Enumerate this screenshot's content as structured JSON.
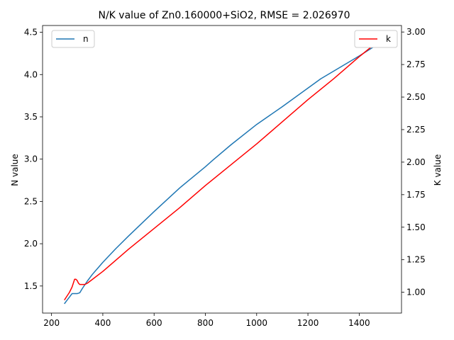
{
  "chart_data": {
    "type": "line",
    "title": "N/K value of Zn0.160000+SiO2, RMSE = 2.026970",
    "xlabel": "",
    "ylabel_left": "N value",
    "ylabel_right": "K value",
    "xlim": [
      165,
      1565
    ],
    "ylim_left": [
      1.18,
      4.58
    ],
    "ylim_right": [
      0.84,
      3.05
    ],
    "x_ticks": [
      200,
      400,
      600,
      800,
      1000,
      1200,
      1400
    ],
    "x_tick_labels": [
      "200",
      "400",
      "600",
      "800",
      "1000",
      "1200",
      "1400"
    ],
    "y_left_ticks": [
      1.5,
      2.0,
      2.5,
      3.0,
      3.5,
      4.0,
      4.5
    ],
    "y_left_tick_labels": [
      "1.5",
      "2.0",
      "2.5",
      "3.0",
      "3.5",
      "4.0",
      "4.5"
    ],
    "y_right_ticks": [
      1.0,
      1.25,
      1.5,
      1.75,
      2.0,
      2.25,
      2.5,
      2.75,
      3.0
    ],
    "y_right_tick_labels": [
      "1.00",
      "1.25",
      "1.50",
      "1.75",
      "2.00",
      "2.25",
      "2.50",
      "2.75",
      "3.00"
    ],
    "grid": false,
    "series": [
      {
        "name": "n",
        "axis": "left",
        "color": "#1f77b4",
        "legend_position": "upper-left",
        "x": [
          250,
          260,
          270,
          280,
          290,
          300,
          310,
          320,
          340,
          360,
          380,
          400,
          450,
          500,
          600,
          700,
          800,
          830,
          900,
          1000,
          1100,
          1200,
          1250,
          1300,
          1400,
          1500
        ],
        "y": [
          1.29,
          1.33,
          1.37,
          1.41,
          1.41,
          1.41,
          1.42,
          1.47,
          1.56,
          1.64,
          1.71,
          1.78,
          1.94,
          2.09,
          2.38,
          2.66,
          2.91,
          2.99,
          3.17,
          3.41,
          3.62,
          3.84,
          3.95,
          4.04,
          4.22,
          4.41
        ]
      },
      {
        "name": "k",
        "axis": "right",
        "color": "#ff0000",
        "legend_position": "upper-right",
        "x": [
          250,
          260,
          270,
          280,
          285,
          290,
          295,
          300,
          305,
          310,
          320,
          330,
          340,
          360,
          400,
          500,
          600,
          700,
          800,
          900,
          1000,
          1100,
          1200,
          1300,
          1400,
          1500
        ],
        "y": [
          0.94,
          0.97,
          1.0,
          1.04,
          1.07,
          1.1,
          1.1,
          1.09,
          1.07,
          1.06,
          1.06,
          1.06,
          1.07,
          1.1,
          1.16,
          1.33,
          1.49,
          1.65,
          1.82,
          1.98,
          2.14,
          2.31,
          2.48,
          2.64,
          2.81,
          2.97
        ]
      }
    ]
  }
}
